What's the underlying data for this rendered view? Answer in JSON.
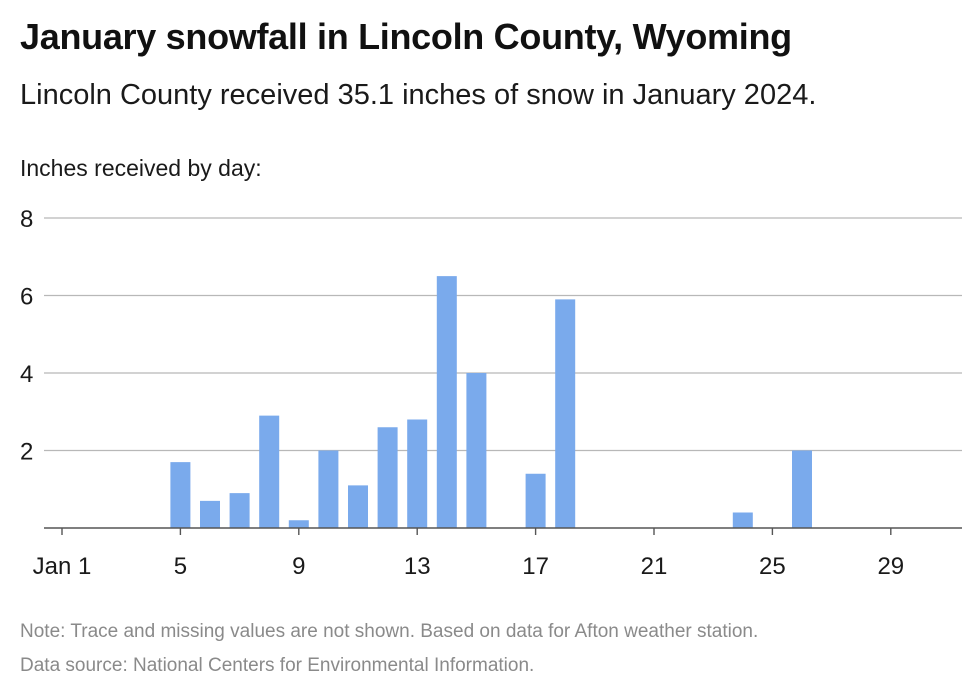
{
  "title": "January snowfall in Lincoln County, Wyoming",
  "subtitle": "Lincoln County received 35.1 inches of snow in January 2024.",
  "note": "Note: Trace and missing values are not shown. Based on data for Afton weather station.",
  "source": "Data source: National Centers for Environmental Information.",
  "colors": {
    "bar": "#7aaaec",
    "grid": "#b8b8b8",
    "axis": "#555555",
    "text": "#1a1a1a",
    "footer": "#8a8a8a"
  },
  "chart_data": {
    "type": "bar",
    "ylabel": "Inches received by day:",
    "xlabel": "",
    "ylim": [
      0,
      8
    ],
    "yticks": [
      2,
      4,
      6,
      8
    ],
    "xlim": [
      1,
      31
    ],
    "xticks": [
      {
        "day": 1,
        "label": "Jan 1"
      },
      {
        "day": 5,
        "label": "5"
      },
      {
        "day": 9,
        "label": "9"
      },
      {
        "day": 13,
        "label": "13"
      },
      {
        "day": 17,
        "label": "17"
      },
      {
        "day": 21,
        "label": "21"
      },
      {
        "day": 25,
        "label": "25"
      },
      {
        "day": 29,
        "label": "29"
      }
    ],
    "grid": true,
    "x": [
      5,
      6,
      7,
      8,
      9,
      10,
      11,
      12,
      13,
      14,
      15,
      17,
      18,
      24,
      26
    ],
    "values": [
      1.7,
      0.7,
      0.9,
      2.9,
      0.2,
      2.0,
      1.1,
      2.6,
      2.8,
      6.5,
      4.0,
      1.4,
      5.9,
      0.4,
      2.0
    ]
  }
}
